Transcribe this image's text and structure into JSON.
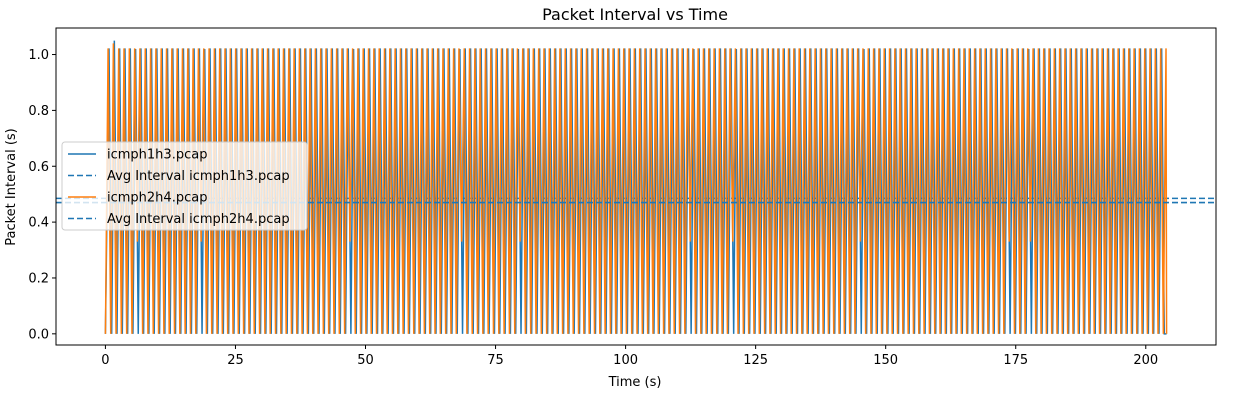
{
  "chart_data": {
    "type": "line",
    "title": "Packet Interval vs Time",
    "xlabel": "Time (s)",
    "ylabel": "Packet Interval (s)",
    "xlim": [
      -9.5,
      213.5
    ],
    "ylim": [
      -0.04,
      1.095
    ],
    "xticks": [
      0,
      25,
      50,
      75,
      100,
      125,
      150,
      175,
      200
    ],
    "yticks": [
      0.0,
      0.2,
      0.4,
      0.6,
      0.8,
      1.0
    ],
    "xtick_labels": [
      "0",
      "25",
      "50",
      "75",
      "100",
      "125",
      "150",
      "175",
      "200"
    ],
    "ytick_labels": [
      "0.0",
      "0.2",
      "0.4",
      "0.6",
      "0.8",
      "1.0"
    ],
    "grid": false,
    "legend_position": "center-left",
    "series": [
      {
        "name": "icmph1h3.pcap",
        "style": "solid",
        "color": "#1f77b4",
        "x_start": 0.0,
        "x_end": 204.0,
        "oscillation_period": 1.022,
        "low": 0.0,
        "high": 1.022,
        "special_peaks": [
          {
            "x": 2.1,
            "y": 1.05
          },
          {
            "x": 6.3,
            "y": 1.02
          },
          {
            "x": 18.6,
            "y": 1.02
          },
          {
            "x": 47.2,
            "y": 1.02
          },
          {
            "x": 68.5,
            "y": 1.02
          },
          {
            "x": 79.8,
            "y": 1.02
          },
          {
            "x": 112.6,
            "y": 1.02
          },
          {
            "x": 121.0,
            "y": 1.02
          },
          {
            "x": 145.6,
            "y": 1.02
          },
          {
            "x": 174.3,
            "y": 1.02
          },
          {
            "x": 178.0,
            "y": 1.02
          }
        ],
        "special_dips": [
          {
            "x": 154.1,
            "y": 0.0
          }
        ]
      },
      {
        "name": "Avg Interval icmph1h3.pcap",
        "style": "dashed",
        "color": "#1f77b4",
        "value": 0.485
      },
      {
        "name": "icmph2h4.pcap",
        "style": "solid",
        "color": "#ff7f0e",
        "x_start": 0.0,
        "x_end": 204.0,
        "oscillation_period": 1.022,
        "low": 0.0,
        "high": 1.022,
        "special_peaks": [
          {
            "x": 1.3,
            "y": 1.04
          }
        ],
        "mid_dips": [
          {
            "x": 6.0,
            "y": 0.33
          },
          {
            "x": 18.0,
            "y": 0.33
          },
          {
            "x": 46.8,
            "y": 0.33
          },
          {
            "x": 68.0,
            "y": 0.33
          },
          {
            "x": 79.4,
            "y": 0.33
          },
          {
            "x": 112.2,
            "y": 0.33
          },
          {
            "x": 120.6,
            "y": 0.33
          },
          {
            "x": 145.2,
            "y": 0.33
          },
          {
            "x": 173.9,
            "y": 0.33
          },
          {
            "x": 177.6,
            "y": 0.33
          }
        ]
      },
      {
        "name": "Avg Interval icmph2h4.pcap",
        "style": "dashed",
        "color": "#1f77b4",
        "value": 0.47
      }
    ]
  }
}
